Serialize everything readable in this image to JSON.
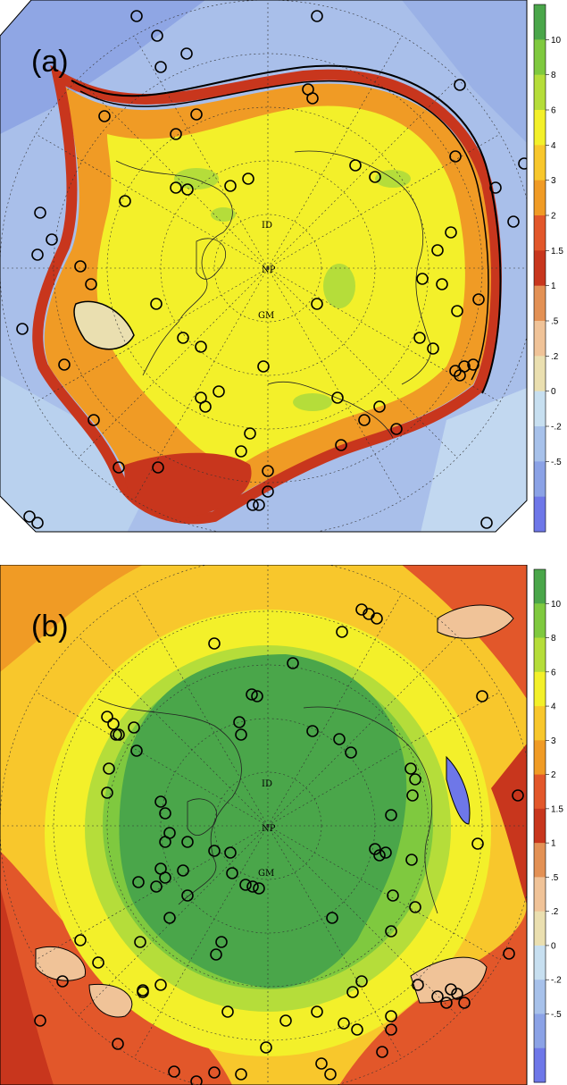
{
  "panels": [
    {
      "id": "a",
      "label": "(a)",
      "map_labels": {
        "id": "ID",
        "np": "NP",
        "gm": "GM"
      },
      "colorbar": {
        "ticks": [
          "10",
          "8",
          "6",
          "4",
          "3",
          "2",
          "1.5",
          "1",
          ".5",
          ".2",
          "0",
          "-.2",
          "-.5"
        ]
      }
    },
    {
      "id": "b",
      "label": "(b)",
      "map_labels": {
        "id": "ID",
        "np": "NP",
        "gm": "GM"
      },
      "colorbar": {
        "ticks": [
          "10",
          "8",
          "6",
          "4",
          "3",
          "2",
          "1.5",
          "1",
          ".5",
          ".2",
          "0",
          "-.2",
          "-.5"
        ]
      }
    }
  ],
  "colorbar_colors": [
    "#4aa64a",
    "#7fc93f",
    "#b5dd3a",
    "#f3f02a",
    "#f8c72c",
    "#f09b25",
    "#e2572a",
    "#c8361d",
    "#e39155",
    "#f0c398",
    "#eadfb0",
    "#c7dff0",
    "#a7c1ea",
    "#8ba2e6",
    "#6e77e8"
  ]
}
